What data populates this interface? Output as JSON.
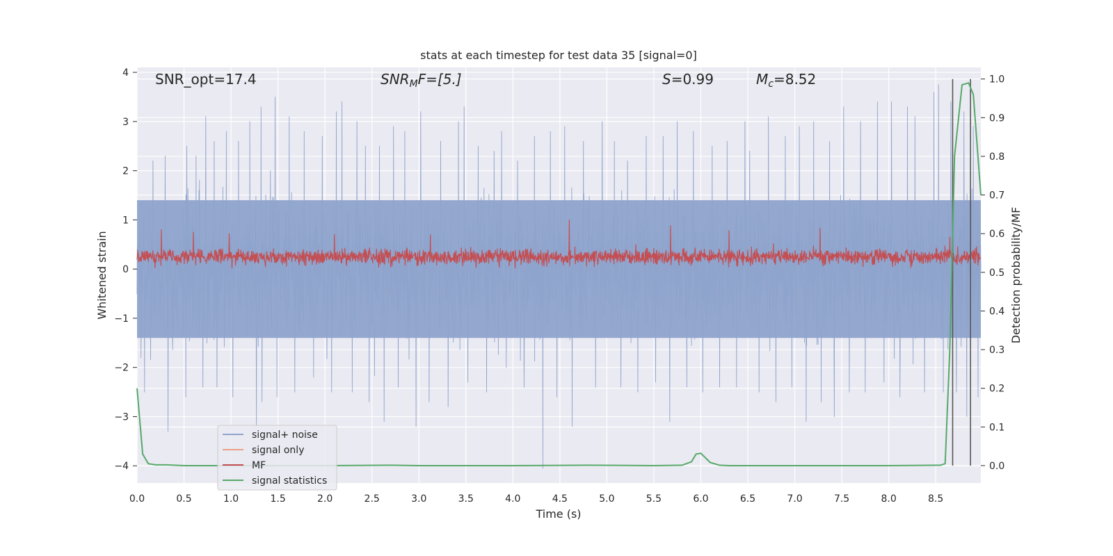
{
  "chart_data": {
    "type": "line",
    "title": "stats at each timestep for test data 35 [signal=0]",
    "xlabel": "Time (s)",
    "ylabel": "Whitened strain",
    "y2label": "Detection probability/MF",
    "xlim": [
      0.0,
      8.98
    ],
    "ylim": [
      -4.35,
      4.1
    ],
    "y2lim": [
      -0.045,
      1.03
    ],
    "xticks": [
      "0.0",
      "0.5",
      "1.0",
      "1.5",
      "2.0",
      "2.5",
      "3.0",
      "3.5",
      "4.0",
      "4.5",
      "5.0",
      "5.5",
      "6.0",
      "6.5",
      "7.0",
      "7.5",
      "8.0",
      "8.5"
    ],
    "yticks": [
      "4",
      "3",
      "2",
      "1",
      "0",
      "−1",
      "−2",
      "−3",
      "−4"
    ],
    "y2ticks": [
      "1.0",
      "0.9",
      "0.8",
      "0.7",
      "0.6",
      "0.5",
      "0.4",
      "0.3",
      "0.2",
      "0.1",
      "0.0"
    ],
    "grid": true,
    "legend_position": "lower-left",
    "annotations": {
      "snr_opt": "SNR_opt=17.4",
      "snr_mf_label": "SNR",
      "snr_mf_sub": "M",
      "snr_mf_rest": "F=[5.]",
      "s_label": "S",
      "s_value": "=0.99",
      "mc_label": "M",
      "mc_sub": "c",
      "mc_value": "=8.52"
    },
    "series": [
      {
        "name": "signal+ noise",
        "color": "#8fa4cc",
        "axis": "left",
        "noise_amplitude_typical": 1.4,
        "peaks": [
          [
            0.08,
            -2.5
          ],
          [
            0.17,
            2.2
          ],
          [
            0.3,
            2.3
          ],
          [
            0.33,
            -3.3
          ],
          [
            0.52,
            -2.6
          ],
          [
            0.53,
            2.5
          ],
          [
            0.63,
            2.3
          ],
          [
            0.7,
            -2.4
          ],
          [
            0.73,
            3.1
          ],
          [
            0.82,
            2.6
          ],
          [
            0.85,
            -2.4
          ],
          [
            0.95,
            2.8
          ],
          [
            1.02,
            -2.6
          ],
          [
            1.08,
            2.6
          ],
          [
            1.2,
            3.0
          ],
          [
            1.27,
            -3.2
          ],
          [
            1.32,
            3.3
          ],
          [
            1.33,
            -2.7
          ],
          [
            1.42,
            2.0
          ],
          [
            1.47,
            3.5
          ],
          [
            1.49,
            -2.6
          ],
          [
            1.62,
            3.1
          ],
          [
            1.68,
            -2.5
          ],
          [
            1.78,
            2.8
          ],
          [
            1.88,
            -2.2
          ],
          [
            1.97,
            2.7
          ],
          [
            2.07,
            -2.5
          ],
          [
            2.12,
            3.2
          ],
          [
            2.18,
            3.4
          ],
          [
            2.29,
            -2.5
          ],
          [
            2.34,
            3.0
          ],
          [
            2.43,
            2.5
          ],
          [
            2.47,
            -2.7
          ],
          [
            2.58,
            2.5
          ],
          [
            2.63,
            -3.1
          ],
          [
            2.73,
            2.9
          ],
          [
            2.78,
            -2.4
          ],
          [
            2.85,
            2.8
          ],
          [
            2.97,
            -3.2
          ],
          [
            3.02,
            3.2
          ],
          [
            3.11,
            -2.7
          ],
          [
            3.23,
            2.6
          ],
          [
            3.31,
            -2.8
          ],
          [
            3.42,
            3.0
          ],
          [
            3.48,
            3.3
          ],
          [
            3.52,
            -2.3
          ],
          [
            3.63,
            2.5
          ],
          [
            3.72,
            -2.5
          ],
          [
            3.8,
            2.4
          ],
          [
            3.88,
            2.8
          ],
          [
            3.93,
            -2.0
          ],
          [
            4.05,
            2.2
          ],
          [
            4.12,
            -2.4
          ],
          [
            4.23,
            2.7
          ],
          [
            4.32,
            -4.05
          ],
          [
            4.4,
            2.8
          ],
          [
            4.47,
            -2.6
          ],
          [
            4.55,
            2.9
          ],
          [
            4.63,
            -3.2
          ],
          [
            4.75,
            2.6
          ],
          [
            4.88,
            -2.4
          ],
          [
            4.95,
            3.0
          ],
          [
            5.08,
            2.6
          ],
          [
            5.15,
            -2.4
          ],
          [
            5.22,
            2.2
          ],
          [
            5.33,
            -2.5
          ],
          [
            5.42,
            2.7
          ],
          [
            5.52,
            -2.3
          ],
          [
            5.6,
            2.7
          ],
          [
            5.67,
            -3.1
          ],
          [
            5.75,
            3.0
          ],
          [
            5.85,
            -2.4
          ],
          [
            5.92,
            2.8
          ],
          [
            6.02,
            -2.5
          ],
          [
            6.12,
            2.5
          ],
          [
            6.2,
            -2.4
          ],
          [
            6.28,
            2.6
          ],
          [
            6.38,
            -2.4
          ],
          [
            6.47,
            3.0
          ],
          [
            6.52,
            2.4
          ],
          [
            6.62,
            -2.5
          ],
          [
            6.72,
            3.1
          ],
          [
            6.8,
            -2.7
          ],
          [
            6.9,
            2.7
          ],
          [
            6.97,
            -2.4
          ],
          [
            7.05,
            2.9
          ],
          [
            7.12,
            -3.1
          ],
          [
            7.2,
            3.0
          ],
          [
            7.28,
            -2.7
          ],
          [
            7.37,
            2.6
          ],
          [
            7.42,
            -3.0
          ],
          [
            7.52,
            3.3
          ],
          [
            7.58,
            -2.5
          ],
          [
            7.7,
            3.0
          ],
          [
            7.75,
            -2.5
          ],
          [
            7.88,
            3.4
          ],
          [
            7.95,
            -2.3
          ],
          [
            8.03,
            3.4
          ],
          [
            8.12,
            -2.6
          ],
          [
            8.2,
            3.3
          ],
          [
            8.28,
            3.1
          ],
          [
            8.38,
            -2.5
          ],
          [
            8.48,
            3.6
          ],
          [
            8.53,
            3.75
          ],
          [
            8.58,
            -2.5
          ],
          [
            8.66,
            3.4
          ],
          [
            8.72,
            -2.5
          ],
          [
            8.8,
            3.2
          ],
          [
            8.83,
            -3.0
          ],
          [
            8.9,
            2.9
          ],
          [
            8.95,
            -2.6
          ]
        ]
      },
      {
        "name": "signal only",
        "color": "#ee9e84",
        "axis": "left",
        "values": []
      },
      {
        "name": "MF",
        "color": "#c44e52",
        "axis": "left",
        "baseline": 0.25,
        "spikes": [
          [
            0.26,
            0.8
          ],
          [
            0.6,
            0.75
          ],
          [
            0.98,
            0.72
          ],
          [
            2.1,
            0.7
          ],
          [
            3.12,
            0.7
          ],
          [
            4.6,
            1.0
          ],
          [
            5.68,
            0.88
          ],
          [
            6.3,
            0.78
          ],
          [
            7.27,
            0.83
          ],
          [
            8.65,
            0.65
          ]
        ]
      },
      {
        "name": "signal statistics",
        "color": "#55a868",
        "axis": "right",
        "x": [
          0.0,
          0.06,
          0.12,
          0.2,
          0.3,
          0.4,
          0.5,
          1.0,
          2.0,
          2.7,
          3.0,
          4.0,
          4.8,
          5.5,
          5.8,
          5.9,
          5.95,
          6.0,
          6.05,
          6.1,
          6.2,
          6.3,
          7.0,
          8.0,
          8.55,
          8.6,
          8.65,
          8.7,
          8.78,
          8.85,
          8.9,
          8.98
        ],
        "values": [
          0.2,
          0.03,
          0.005,
          0.002,
          0.002,
          0.001,
          0.0,
          0.0,
          0.0,
          0.001,
          0.0,
          0.0,
          0.001,
          0.0,
          0.001,
          0.01,
          0.03,
          0.032,
          0.02,
          0.008,
          0.001,
          0.0,
          0.0,
          0.0,
          0.001,
          0.005,
          0.3,
          0.8,
          0.985,
          0.99,
          0.96,
          0.7
        ]
      }
    ],
    "vertical_markers": [
      8.68,
      8.87
    ]
  }
}
